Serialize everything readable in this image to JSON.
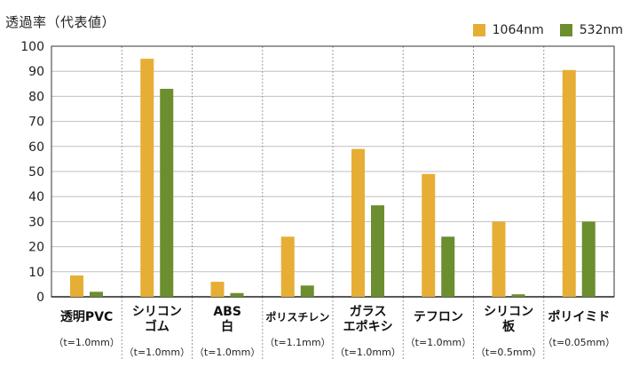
{
  "chart_data": {
    "type": "bar",
    "ylabel": "透過率（代表値）",
    "ylim": [
      0,
      100
    ],
    "yticks": [
      0,
      10,
      20,
      30,
      40,
      50,
      60,
      70,
      80,
      90,
      100
    ],
    "grid": true,
    "legend_position": "top-right",
    "categories": [
      {
        "name_lines": [
          "透明PVC"
        ],
        "note": "（t=1.0mm）"
      },
      {
        "name_lines": [
          "シリコン",
          "ゴム"
        ],
        "note": "（t=1.0mm）"
      },
      {
        "name_lines": [
          "ABS",
          "白"
        ],
        "note": "（t=1.0mm）"
      },
      {
        "name_lines": [
          "ポリスチレン"
        ],
        "note": "（t=1.1mm）"
      },
      {
        "name_lines": [
          "ガラス",
          "エポキシ"
        ],
        "note": "（t=1.0mm）"
      },
      {
        "name_lines": [
          "テフロン"
        ],
        "note": "（t=1.0mm）"
      },
      {
        "name_lines": [
          "シリコン",
          "板"
        ],
        "note": "（t=0.5mm）"
      },
      {
        "name_lines": [
          "ポリイミド"
        ],
        "note": "（t=0.05mm）"
      }
    ],
    "series": [
      {
        "name": "1064nm",
        "color": "#E6AE35",
        "values": [
          8.5,
          95,
          6,
          24,
          59,
          49,
          30,
          90.5
        ]
      },
      {
        "name": "532nm",
        "color": "#6B8E2E",
        "values": [
          2,
          83,
          1.5,
          4.5,
          36.5,
          24,
          1,
          30
        ]
      }
    ],
    "colors": {
      "grid": "#bfbfbf",
      "axis": "#222222",
      "frame": "#333333"
    }
  }
}
